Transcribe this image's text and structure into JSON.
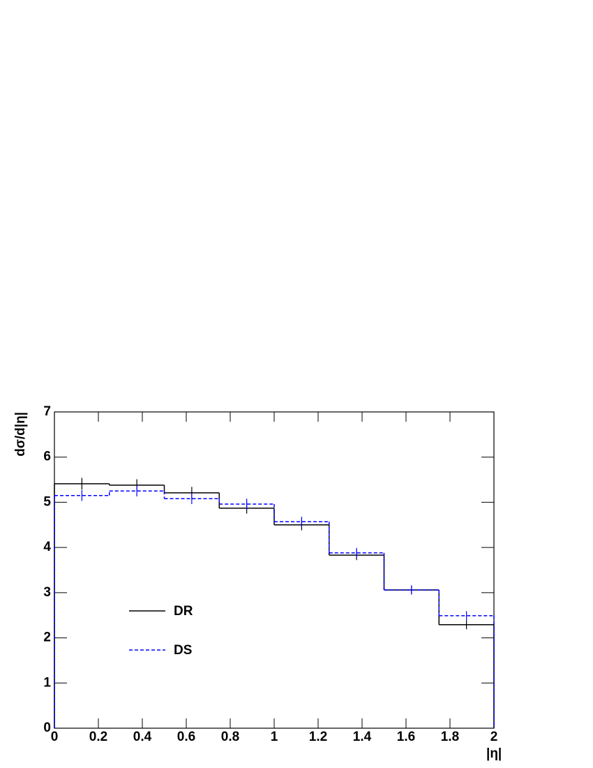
{
  "chart_data": {
    "type": "histogram",
    "x_label": "|η|",
    "y_label": "dσ/d|η|",
    "bins": [
      0,
      0.25,
      0.5,
      0.75,
      1,
      1.25,
      1.5,
      1.75,
      2
    ],
    "series": [
      {
        "name": "DR",
        "color": "#000000",
        "style": "solid",
        "values": [
          5.41,
          5.38,
          5.21,
          4.87,
          4.5,
          3.83,
          3.06,
          2.29
        ],
        "errors": [
          0.13,
          0.13,
          0.13,
          0.12,
          0.12,
          0.11,
          0.1,
          0.1
        ]
      },
      {
        "name": "DS",
        "color": "#0000ff",
        "style": "dashed",
        "values": [
          5.15,
          5.25,
          5.08,
          4.96,
          4.57,
          3.88,
          3.06,
          2.49
        ],
        "errors": [
          0.12,
          0.12,
          0.12,
          0.12,
          0.11,
          0.11,
          0.1,
          0.1
        ]
      }
    ],
    "xlim": [
      0,
      2
    ],
    "xticks": [
      0,
      0.2,
      0.4,
      0.6,
      0.8,
      1,
      1.2,
      1.4,
      1.6,
      1.8,
      2
    ],
    "ylim": [
      0,
      7
    ],
    "yticks": [
      0,
      1,
      2,
      3,
      4,
      5,
      6,
      7
    ]
  }
}
